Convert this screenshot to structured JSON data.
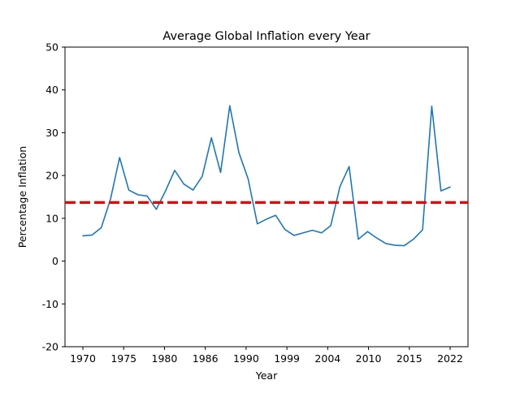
{
  "chart_data": {
    "type": "line",
    "title": "Average Global Inflation every Year",
    "xlabel": "Year",
    "ylabel": "Percentage Inflation",
    "ylim": [
      -20,
      50
    ],
    "xlim": [
      1970,
      2022
    ],
    "y_ticks": [
      -20,
      -10,
      0,
      10,
      20,
      30,
      40,
      50
    ],
    "x_tick_labels": [
      "1970",
      "1975",
      "1980",
      "1986",
      "1990",
      "1999",
      "2004",
      "2010",
      "2015",
      "2022"
    ],
    "grid": false,
    "legend": "none",
    "reference_line": {
      "value": 13.7,
      "style": "dashed",
      "color": "#e00000"
    },
    "series": [
      {
        "color": "#1f77b4",
        "values": [
          5.9,
          6.1,
          7.8,
          14.4,
          24.2,
          16.6,
          15.5,
          15.2,
          12.1,
          16.4,
          21.2,
          18.0,
          16.6,
          19.8,
          28.8,
          20.7,
          36.3,
          25.3,
          19.2,
          8.7,
          9.8,
          10.7,
          7.4,
          6.0,
          6.6,
          7.2,
          6.6,
          8.3,
          17.4,
          22.1,
          5.1,
          6.9,
          5.4,
          4.1,
          3.7,
          3.6,
          5.1,
          7.3,
          36.2,
          16.4,
          17.3
        ]
      }
    ]
  }
}
